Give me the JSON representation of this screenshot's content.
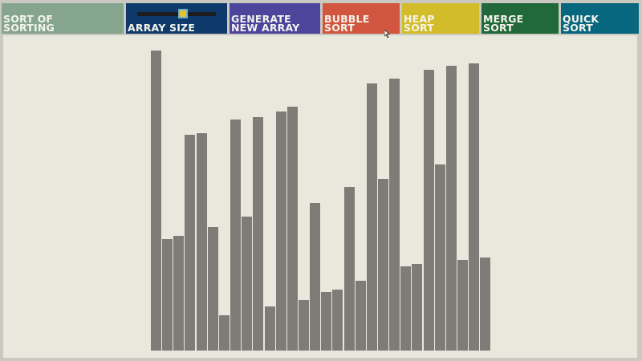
{
  "toolbar": {
    "buttons": [
      {
        "id": "title",
        "line1": "SORT OF",
        "line2": "SORTING",
        "color": "#86a58f"
      },
      {
        "id": "array-size",
        "line1": "",
        "line2": "ARRAY SIZE",
        "color": "#0d3a6a"
      },
      {
        "id": "generate",
        "line1": "GENERATE",
        "line2": "NEW ARRAY",
        "color": "#4d449b"
      },
      {
        "id": "bubble",
        "line1": "BUBBLE",
        "line2": "SORT",
        "color": "#d2553f"
      },
      {
        "id": "heap",
        "line1": "HEAP",
        "line2": "SORT",
        "color": "#d2bc2a"
      },
      {
        "id": "merge",
        "line1": "MERGE",
        "line2": "SORT",
        "color": "#21683a"
      },
      {
        "id": "quick",
        "line1": "QUICK",
        "line2": "SORT",
        "color": "#07677e"
      }
    ],
    "array_size_slider": {
      "value": 0.58
    }
  },
  "array": {
    "values": [
      381,
      141,
      146,
      274,
      276,
      157,
      45,
      293,
      170,
      296,
      56,
      303,
      309,
      64,
      187,
      74,
      77,
      208,
      89,
      339,
      218,
      345,
      107,
      110,
      356,
      236,
      361,
      115,
      364,
      118
    ],
    "max_value": 400,
    "bar_color": "#7d7c76"
  }
}
